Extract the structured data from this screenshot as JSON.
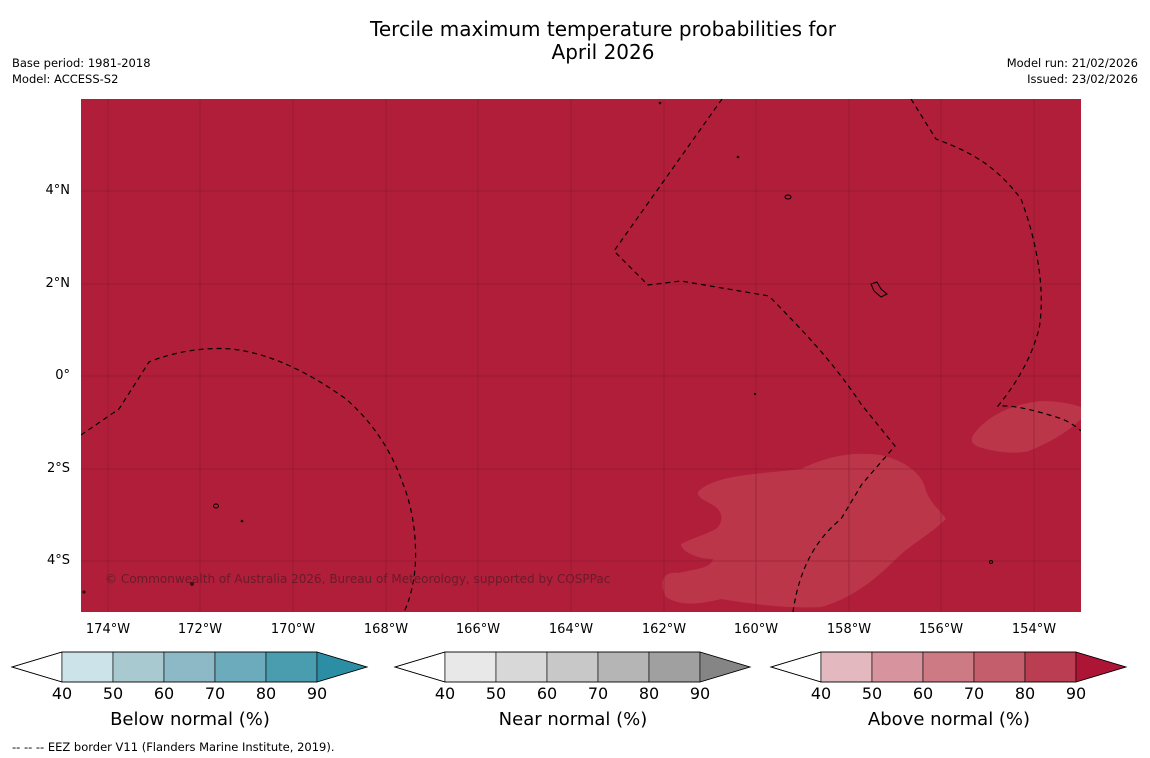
{
  "title_line1": "Tercile maximum temperature probabilities for",
  "title_line2": "April 2026",
  "meta": {
    "base_period": "Base period: 1981-2018",
    "model": "Model: ACCESS-S2",
    "model_run": "Model run: 21/02/2026",
    "issued": "Issued: 23/02/2026"
  },
  "map": {
    "lat_labels": [
      "4°N",
      "2°N",
      "0°",
      "2°S",
      "4°S"
    ],
    "lon_labels": [
      "174°W",
      "172°W",
      "170°W",
      "168°W",
      "166°W",
      "164°W",
      "162°W",
      "160°W",
      "158°W",
      "156°W",
      "154°W"
    ],
    "copyright": "© Commonwealth of Australia 2026, Bureau of Meteorology, supported by COSPPac",
    "fill_color": "#b01e3a",
    "light_patch_color": "#bb3649"
  },
  "colorbars": [
    {
      "title": "Below normal (%)",
      "ticks": [
        "40",
        "50",
        "60",
        "70",
        "80",
        "90"
      ],
      "colors": [
        "#cce3ea",
        "#a9c9d0",
        "#8db8c5",
        "#6babbc",
        "#4a9caf",
        "#2b8ea5"
      ]
    },
    {
      "title": "Near normal (%)",
      "ticks": [
        "40",
        "50",
        "60",
        "70",
        "80",
        "90"
      ],
      "colors": [
        "#e8e8e8",
        "#d8d8d8",
        "#c8c8c8",
        "#b5b5b5",
        "#a0a0a0",
        "#858585"
      ]
    },
    {
      "title": "Above normal (%)",
      "ticks": [
        "40",
        "50",
        "60",
        "70",
        "80",
        "90"
      ],
      "colors": [
        "#e3b8bf",
        "#d8949e",
        "#cd7a85",
        "#c55e6c",
        "#ba3d51",
        "#ad1537"
      ]
    }
  ],
  "footnote": "--  --  -- EEZ border V11 (Flanders Marine Institute, 2019)."
}
